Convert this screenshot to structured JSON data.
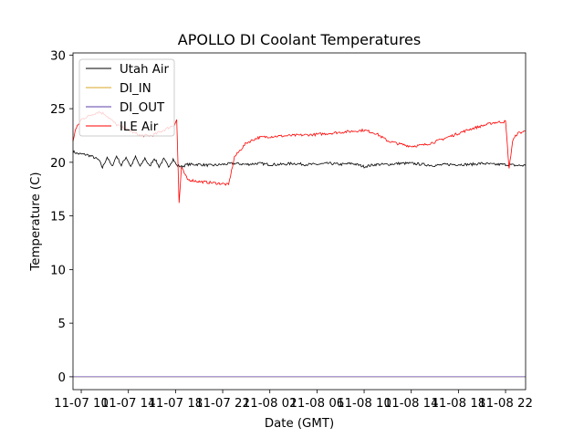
{
  "chart_data": {
    "type": "line",
    "title": "APOLLO DI Coolant Temperatures",
    "xlabel": "Date (GMT)",
    "ylabel": "Temperature (C)",
    "xlim_hours": [
      -0.7,
      37.7
    ],
    "ylim": [
      -1.2,
      30.2
    ],
    "y_ticks": [
      0,
      5,
      10,
      15,
      20,
      25,
      30
    ],
    "x_ticks": [
      {
        "hours": 0,
        "label": "11-07 10"
      },
      {
        "hours": 4,
        "label": "11-07 14"
      },
      {
        "hours": 8,
        "label": "11-07 18"
      },
      {
        "hours": 12,
        "label": "11-07 22"
      },
      {
        "hours": 16,
        "label": "11-08 02"
      },
      {
        "hours": 20,
        "label": "11-08 06"
      },
      {
        "hours": 24,
        "label": "11-08 10"
      },
      {
        "hours": 28,
        "label": "11-08 14"
      },
      {
        "hours": 32,
        "label": "11-08 18"
      },
      {
        "hours": 36,
        "label": "11-08 22"
      }
    ],
    "legend_location": "upper-left",
    "series": [
      {
        "name": "Utah Air",
        "color": "#000000",
        "x": [
          -0.7,
          -0.3,
          0.5,
          1.0,
          1.5,
          1.8,
          2.2,
          2.6,
          3.0,
          3.4,
          3.8,
          4.2,
          4.6,
          5.0,
          5.4,
          5.8,
          6.2,
          6.6,
          7.0,
          7.4,
          7.8,
          8.1,
          8.5,
          9.0,
          10.0,
          11.0,
          12.0,
          13.0,
          14.0,
          15.0,
          16.0,
          17.0,
          18.0,
          19.0,
          20.0,
          21.0,
          22.0,
          23.0,
          24.0,
          25.0,
          26.0,
          27.0,
          28.0,
          29.0,
          30.0,
          31.0,
          32.0,
          33.0,
          34.0,
          35.0,
          36.0,
          37.0,
          37.7
        ],
        "y": [
          21.0,
          20.8,
          20.7,
          20.5,
          20.2,
          19.5,
          20.5,
          19.6,
          20.6,
          19.7,
          20.5,
          19.6,
          20.5,
          19.6,
          20.4,
          19.6,
          20.4,
          19.6,
          20.3,
          19.6,
          20.3,
          19.7,
          19.6,
          19.8,
          19.8,
          19.7,
          19.8,
          19.9,
          19.8,
          19.9,
          19.8,
          19.8,
          19.9,
          19.8,
          19.8,
          19.9,
          19.8,
          19.9,
          19.6,
          19.8,
          19.8,
          19.9,
          19.9,
          19.8,
          19.7,
          19.8,
          19.8,
          19.8,
          19.9,
          19.8,
          19.8,
          19.7,
          19.7
        ]
      },
      {
        "name": "DI_IN",
        "color": "#daa520",
        "x": [
          -0.7,
          37.7
        ],
        "y": [
          0.0,
          0.0
        ]
      },
      {
        "name": "DI_OUT",
        "color": "#5b3fa8",
        "x": [
          -0.7,
          37.7
        ],
        "y": [
          0.0,
          0.0
        ]
      },
      {
        "name": "ILE Air",
        "color": "#ff0000",
        "x": [
          -0.7,
          -0.5,
          0.0,
          1.0,
          1.5,
          2.0,
          2.5,
          3.0,
          4.0,
          5.0,
          6.0,
          7.0,
          7.9,
          8.1,
          8.3,
          8.5,
          9.0,
          10.0,
          11.0,
          12.0,
          12.5,
          13.0,
          14.0,
          15.0,
          16.0,
          18.0,
          20.0,
          22.0,
          24.0,
          25.0,
          26.0,
          27.0,
          28.0,
          29.0,
          30.0,
          31.0,
          32.0,
          33.0,
          34.0,
          35.0,
          36.0,
          36.3,
          36.6,
          37.0,
          37.7
        ],
        "y": [
          22.0,
          23.0,
          24.0,
          24.5,
          24.7,
          24.5,
          24.0,
          23.5,
          23.0,
          22.5,
          22.5,
          23.0,
          23.5,
          24.0,
          16.2,
          19.5,
          18.4,
          18.2,
          18.1,
          18.0,
          17.9,
          20.5,
          21.8,
          22.3,
          22.4,
          22.5,
          22.6,
          22.8,
          23.0,
          22.7,
          22.0,
          21.7,
          21.5,
          21.6,
          21.9,
          22.3,
          22.7,
          23.1,
          23.4,
          23.7,
          23.8,
          19.4,
          22.0,
          22.7,
          22.9
        ]
      }
    ]
  }
}
